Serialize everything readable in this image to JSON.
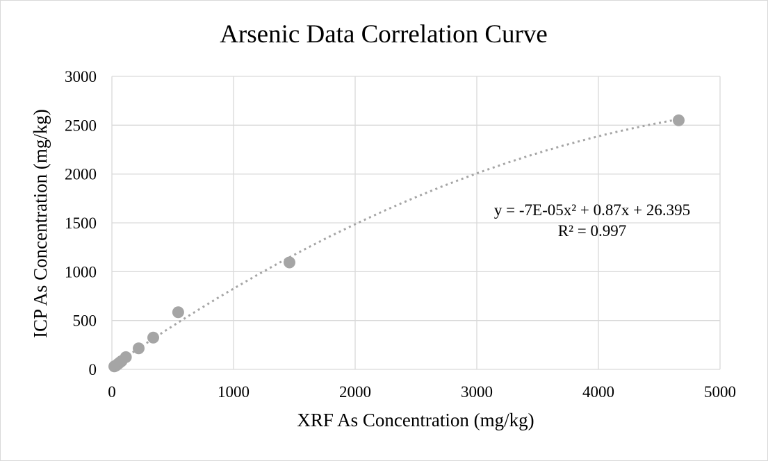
{
  "chart_data": {
    "type": "scatter",
    "title": "Arsenic Data Correlation Curve",
    "xlabel": "XRF As Concentration (mg/kg)",
    "ylabel": "ICP As Concentration (mg/kg)",
    "xlim": [
      0,
      5000
    ],
    "ylim": [
      0,
      3000
    ],
    "x_ticks": [
      "0",
      "1000",
      "2000",
      "3000",
      "4000",
      "5000"
    ],
    "y_ticks": [
      "0",
      "500",
      "1000",
      "1500",
      "2000",
      "2500",
      "3000"
    ],
    "grid": true,
    "legend": "none",
    "series": [
      {
        "x": [
          20,
          35,
          50,
          65,
          80,
          115,
          220,
          340,
          545,
          1460,
          4660
        ],
        "y": [
          30,
          40,
          55,
          70,
          85,
          125,
          215,
          325,
          585,
          1095,
          2550
        ]
      }
    ],
    "trendline": {
      "type": "polynomial",
      "order": 2,
      "coefficients": {
        "a": -7e-05,
        "b": 0.87,
        "c": 26.395
      },
      "equation": "y = -7E-05x² + 0.87x + 26.395",
      "r_squared": "R² = 0.997"
    },
    "colors": {
      "marker": "#a5a5a5",
      "trendline": "#a5a5a5",
      "grid": "#d9d9d9",
      "text": "#000000"
    }
  }
}
